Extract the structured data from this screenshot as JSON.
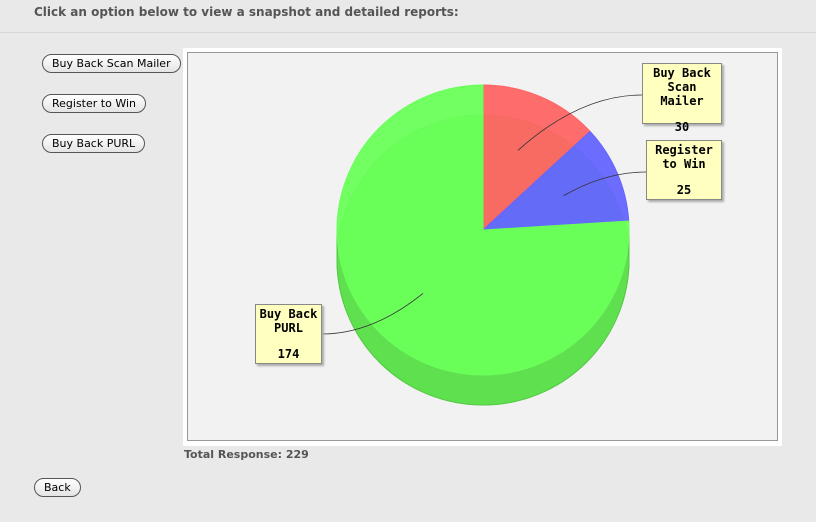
{
  "header": {
    "instruction": "Click an option below to view a snapshot and detailed reports:"
  },
  "buttons": [
    "Buy Back Scan Mailer",
    "Register to Win",
    "Buy Back PURL"
  ],
  "chart_data": {
    "type": "pie",
    "categories": [
      "Buy Back Scan Mailer",
      "Register to Win",
      "Buy Back PURL"
    ],
    "values": [
      30,
      25,
      174
    ],
    "colors": [
      "#ff6464",
      "#6464ff",
      "#6aff5a"
    ]
  },
  "total": "Total Response: 229",
  "back": "Back"
}
